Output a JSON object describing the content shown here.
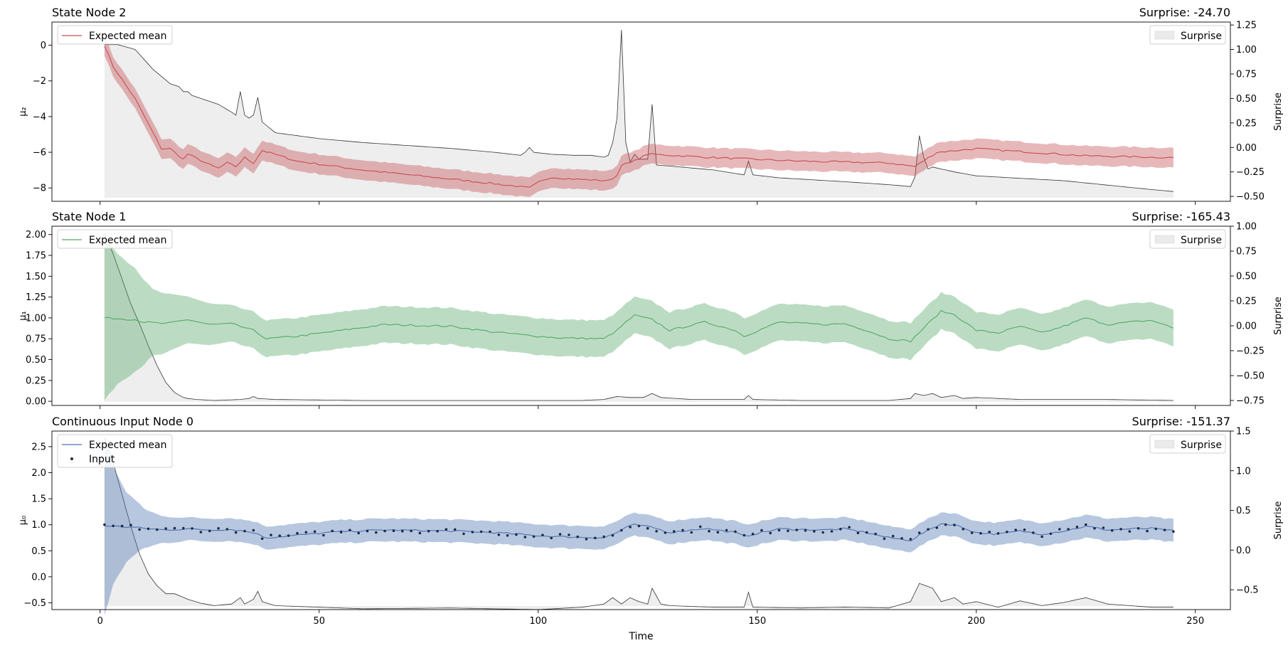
{
  "chart_data": [
    {
      "type": "line",
      "title": "State Node 2",
      "right_title": "Surprise: -24.70",
      "ylabel": "μ₂",
      "ylabel_right": "Surprise",
      "xlim": [
        -11,
        258
      ],
      "ylim": [
        -8.75,
        1.3
      ],
      "ylim_right": [
        -0.55,
        1.28
      ],
      "xticks": [
        0,
        50,
        100,
        150,
        200,
        250
      ],
      "yticks": [
        0,
        -2,
        -4,
        -6,
        -8
      ],
      "yticklabels": [
        "0",
        "−2",
        "−4",
        "−6",
        "−8"
      ],
      "yticks_right": [
        1.25,
        1.0,
        0.75,
        0.5,
        0.25,
        0.0,
        -0.25,
        -0.5
      ],
      "yticklabels_right": [
        "1.25",
        "1.00",
        "0.75",
        "0.50",
        "0.25",
        "0.00",
        "−0.25",
        "−0.50"
      ],
      "show_xticklabels": false,
      "color": "#c44e52",
      "band_halfwidth": 0.55,
      "mean_keypoints": [
        [
          1,
          0
        ],
        [
          3,
          -1.2
        ],
        [
          8,
          -3
        ],
        [
          14,
          -5.8
        ],
        [
          16,
          -5.8
        ],
        [
          19,
          -6.4
        ],
        [
          20,
          -6.1
        ],
        [
          25,
          -6.7
        ],
        [
          27,
          -6.9
        ],
        [
          29,
          -6.6
        ],
        [
          31,
          -6.8
        ],
        [
          33,
          -6.3
        ],
        [
          35,
          -6.6
        ],
        [
          37,
          -5.9
        ],
        [
          45,
          -6.5
        ],
        [
          60,
          -7.0
        ],
        [
          80,
          -7.5
        ],
        [
          95,
          -7.9
        ],
        [
          98,
          -8.0
        ],
        [
          100,
          -7.7
        ],
        [
          103,
          -7.4
        ],
        [
          108,
          -7.5
        ],
        [
          116,
          -7.6
        ],
        [
          118,
          -7.3
        ],
        [
          119,
          -6.7
        ],
        [
          121,
          -6.6
        ],
        [
          125,
          -6.1
        ],
        [
          140,
          -6.3
        ],
        [
          160,
          -6.5
        ],
        [
          180,
          -6.6
        ],
        [
          186,
          -6.8
        ],
        [
          191,
          -6.0
        ],
        [
          200,
          -5.8
        ],
        [
          225,
          -6.2
        ],
        [
          245,
          -6.3
        ]
      ],
      "surprise_keypoints": [
        [
          1,
          1.05
        ],
        [
          4,
          1.05
        ],
        [
          8,
          1.0
        ],
        [
          12,
          0.8
        ],
        [
          16,
          0.65
        ],
        [
          18,
          0.62
        ],
        [
          19,
          0.57
        ],
        [
          20,
          0.57
        ],
        [
          21,
          0.53
        ],
        [
          27,
          0.44
        ],
        [
          30,
          0.36
        ],
        [
          31,
          0.33
        ],
        [
          32,
          0.57
        ],
        [
          33,
          0.33
        ],
        [
          34,
          0.3
        ],
        [
          35,
          0.33
        ],
        [
          36,
          0.51
        ],
        [
          37,
          0.26
        ],
        [
          40,
          0.15
        ],
        [
          50,
          0.09
        ],
        [
          60,
          0.05
        ],
        [
          70,
          0.02
        ],
        [
          80,
          -0.01
        ],
        [
          90,
          -0.05
        ],
        [
          96,
          -0.08
        ],
        [
          97,
          -0.05
        ],
        [
          98,
          0.0
        ],
        [
          99,
          -0.05
        ],
        [
          103,
          -0.07
        ],
        [
          108,
          -0.08
        ],
        [
          112,
          -0.08
        ],
        [
          115,
          -0.1
        ],
        [
          116,
          -0.08
        ],
        [
          117,
          0.05
        ],
        [
          118,
          0.3
        ],
        [
          119,
          1.2
        ],
        [
          120,
          0.05
        ],
        [
          121,
          -0.15
        ],
        [
          122,
          -0.07
        ],
        [
          123,
          -0.12
        ],
        [
          124,
          -0.12
        ],
        [
          125,
          -0.12
        ],
        [
          126,
          0.44
        ],
        [
          127,
          -0.18
        ],
        [
          130,
          -0.19
        ],
        [
          140,
          -0.23
        ],
        [
          147,
          -0.28
        ],
        [
          148,
          -0.14
        ],
        [
          149,
          -0.28
        ],
        [
          155,
          -0.31
        ],
        [
          170,
          -0.35
        ],
        [
          180,
          -0.38
        ],
        [
          185,
          -0.4
        ],
        [
          186,
          -0.3
        ],
        [
          187,
          0.12
        ],
        [
          188,
          -0.1
        ],
        [
          189,
          -0.22
        ],
        [
          190,
          -0.2
        ],
        [
          195,
          -0.25
        ],
        [
          200,
          -0.29
        ],
        [
          220,
          -0.34
        ],
        [
          240,
          -0.43
        ],
        [
          245,
          -0.45
        ]
      ],
      "legend_left": [
        "Expected mean"
      ],
      "legend_right": "Surprise"
    },
    {
      "type": "line",
      "title": "State Node 1",
      "right_title": "Surprise: -165.43",
      "ylabel": "μ₁",
      "ylabel_right": "Surprise",
      "xlim": [
        -11,
        258
      ],
      "ylim": [
        -0.05,
        2.1
      ],
      "ylim_right": [
        -0.8,
        1.0
      ],
      "xticks": [
        0,
        50,
        100,
        150,
        200,
        250
      ],
      "yticks": [
        2.0,
        1.75,
        1.5,
        1.25,
        1.0,
        0.75,
        0.5,
        0.25,
        0.0
      ],
      "yticklabels": [
        "2.00",
        "1.75",
        "1.50",
        "1.25",
        "1.00",
        "0.75",
        "0.50",
        "0.25",
        "0.00"
      ],
      "yticks_right": [
        1.0,
        0.75,
        0.5,
        0.25,
        0.0,
        -0.25,
        -0.5,
        -0.75
      ],
      "yticklabels_right": [
        "1.00",
        "0.75",
        "0.50",
        "0.25",
        "0.00",
        "−0.25",
        "−0.50",
        "−0.75"
      ],
      "show_xticklabels": false,
      "color": "#55a868",
      "band_halfwidth": 0.22,
      "band_extra": [
        [
          1,
          0.77
        ],
        [
          4,
          0.56
        ],
        [
          8,
          0.4
        ],
        [
          12,
          0.18
        ],
        [
          16,
          0.12
        ],
        [
          20,
          0.06
        ],
        [
          30,
          0.0
        ]
      ],
      "mean_keypoints": [
        [
          1,
          1.0
        ],
        [
          8,
          0.98
        ],
        [
          10,
          0.95
        ],
        [
          15,
          0.93
        ],
        [
          20,
          0.98
        ],
        [
          25,
          0.92
        ],
        [
          30,
          0.93
        ],
        [
          35,
          0.85
        ],
        [
          38,
          0.75
        ],
        [
          45,
          0.78
        ],
        [
          55,
          0.85
        ],
        [
          65,
          0.92
        ],
        [
          80,
          0.9
        ],
        [
          90,
          0.83
        ],
        [
          100,
          0.78
        ],
        [
          105,
          0.76
        ],
        [
          115,
          0.75
        ],
        [
          118,
          0.85
        ],
        [
          120,
          0.95
        ],
        [
          122,
          1.03
        ],
        [
          126,
          0.98
        ],
        [
          130,
          0.85
        ],
        [
          138,
          0.95
        ],
        [
          145,
          0.85
        ],
        [
          147,
          0.78
        ],
        [
          155,
          0.95
        ],
        [
          165,
          0.92
        ],
        [
          170,
          0.93
        ],
        [
          175,
          0.85
        ],
        [
          180,
          0.75
        ],
        [
          185,
          0.72
        ],
        [
          188,
          0.88
        ],
        [
          192,
          1.08
        ],
        [
          195,
          1.04
        ],
        [
          200,
          0.85
        ],
        [
          205,
          0.82
        ],
        [
          210,
          0.9
        ],
        [
          215,
          0.82
        ],
        [
          220,
          0.9
        ],
        [
          225,
          1.0
        ],
        [
          230,
          0.92
        ],
        [
          235,
          0.95
        ],
        [
          240,
          0.97
        ],
        [
          245,
          0.88
        ]
      ],
      "surprise_keypoints": [
        [
          1,
          0.93
        ],
        [
          3,
          0.72
        ],
        [
          5,
          0.47
        ],
        [
          7,
          0.22
        ],
        [
          9,
          0.02
        ],
        [
          11,
          -0.2
        ],
        [
          13,
          -0.4
        ],
        [
          15,
          -0.57
        ],
        [
          17,
          -0.67
        ],
        [
          19,
          -0.72
        ],
        [
          20,
          -0.73
        ],
        [
          22,
          -0.74
        ],
        [
          26,
          -0.75
        ],
        [
          32,
          -0.74
        ],
        [
          34,
          -0.73
        ],
        [
          35,
          -0.71
        ],
        [
          36,
          -0.73
        ],
        [
          40,
          -0.74
        ],
        [
          60,
          -0.75
        ],
        [
          80,
          -0.75
        ],
        [
          100,
          -0.75
        ],
        [
          110,
          -0.75
        ],
        [
          115,
          -0.74
        ],
        [
          118,
          -0.71
        ],
        [
          121,
          -0.72
        ],
        [
          124,
          -0.72
        ],
        [
          126,
          -0.68
        ],
        [
          128,
          -0.72
        ],
        [
          135,
          -0.74
        ],
        [
          147,
          -0.74
        ],
        [
          148,
          -0.7
        ],
        [
          149,
          -0.74
        ],
        [
          160,
          -0.75
        ],
        [
          170,
          -0.75
        ],
        [
          180,
          -0.75
        ],
        [
          185,
          -0.73
        ],
        [
          186,
          -0.68
        ],
        [
          188,
          -0.7
        ],
        [
          190,
          -0.68
        ],
        [
          192,
          -0.72
        ],
        [
          195,
          -0.7
        ],
        [
          197,
          -0.73
        ],
        [
          200,
          -0.72
        ],
        [
          210,
          -0.74
        ],
        [
          220,
          -0.74
        ],
        [
          230,
          -0.74
        ],
        [
          245,
          -0.75
        ]
      ],
      "legend_left": [
        "Expected mean"
      ],
      "legend_right": "Surprise"
    },
    {
      "type": "line",
      "title": "Continuous Input Node 0",
      "right_title": "Surprise: -151.37",
      "ylabel": "μ₀",
      "ylabel_right": "Surprise",
      "xlabel": "Time",
      "xlim": [
        -11,
        258
      ],
      "ylim": [
        -0.63,
        2.8
      ],
      "ylim_right": [
        -0.75,
        1.5
      ],
      "xticks": [
        0,
        50,
        100,
        150,
        200,
        250
      ],
      "xticklabels": [
        "0",
        "50",
        "100",
        "150",
        "200",
        "250"
      ],
      "yticks": [
        2.5,
        2.0,
        1.5,
        1.0,
        0.5,
        0.0,
        -0.5
      ],
      "yticklabels": [
        "2.5",
        "2.0",
        "1.5",
        "1.0",
        "0.5",
        "0.0",
        "−0.5"
      ],
      "yticks_right": [
        1.5,
        1.0,
        0.5,
        0.0,
        -0.5
      ],
      "yticklabels_right": [
        "1.5",
        "1.0",
        "0.5",
        "0.0",
        "−0.5"
      ],
      "show_xticklabels": true,
      "color": "#4c72b0",
      "band_halfwidth": 0.22,
      "band_extra": [
        [
          1,
          1.5
        ],
        [
          3,
          0.9
        ],
        [
          6,
          0.45
        ],
        [
          10,
          0.16
        ],
        [
          14,
          0.04
        ],
        [
          20,
          0.0
        ]
      ],
      "mean_keypoints": [
        [
          1,
          0.98
        ],
        [
          8,
          0.95
        ],
        [
          10,
          0.93
        ],
        [
          15,
          0.9
        ],
        [
          20,
          0.92
        ],
        [
          25,
          0.9
        ],
        [
          30,
          0.91
        ],
        [
          35,
          0.85
        ],
        [
          38,
          0.75
        ],
        [
          45,
          0.8
        ],
        [
          55,
          0.87
        ],
        [
          65,
          0.9
        ],
        [
          80,
          0.88
        ],
        [
          90,
          0.85
        ],
        [
          100,
          0.79
        ],
        [
          105,
          0.77
        ],
        [
          115,
          0.75
        ],
        [
          118,
          0.85
        ],
        [
          120,
          0.95
        ],
        [
          122,
          1.0
        ],
        [
          126,
          0.95
        ],
        [
          130,
          0.85
        ],
        [
          138,
          0.93
        ],
        [
          145,
          0.85
        ],
        [
          147,
          0.78
        ],
        [
          155,
          0.92
        ],
        [
          165,
          0.9
        ],
        [
          170,
          0.92
        ],
        [
          175,
          0.85
        ],
        [
          180,
          0.75
        ],
        [
          185,
          0.7
        ],
        [
          188,
          0.85
        ],
        [
          192,
          1.02
        ],
        [
          195,
          1.0
        ],
        [
          200,
          0.85
        ],
        [
          205,
          0.82
        ],
        [
          210,
          0.88
        ],
        [
          215,
          0.82
        ],
        [
          220,
          0.88
        ],
        [
          225,
          0.97
        ],
        [
          230,
          0.9
        ],
        [
          235,
          0.92
        ],
        [
          240,
          0.93
        ],
        [
          245,
          0.88
        ]
      ],
      "input_noise_amplitude": 0.05,
      "surprise_keypoints": [
        [
          1,
          1.42
        ],
        [
          3,
          1.1
        ],
        [
          5,
          0.7
        ],
        [
          7,
          0.3
        ],
        [
          9,
          -0.05
        ],
        [
          11,
          -0.3
        ],
        [
          13,
          -0.45
        ],
        [
          15,
          -0.55
        ],
        [
          17,
          -0.55
        ],
        [
          20,
          -0.62
        ],
        [
          23,
          -0.67
        ],
        [
          26,
          -0.7
        ],
        [
          30,
          -0.68
        ],
        [
          32,
          -0.6
        ],
        [
          33,
          -0.68
        ],
        [
          35,
          -0.62
        ],
        [
          36,
          -0.52
        ],
        [
          37,
          -0.65
        ],
        [
          40,
          -0.7
        ],
        [
          50,
          -0.72
        ],
        [
          60,
          -0.74
        ],
        [
          80,
          -0.73
        ],
        [
          100,
          -0.75
        ],
        [
          110,
          -0.72
        ],
        [
          115,
          -0.68
        ],
        [
          117,
          -0.6
        ],
        [
          119,
          -0.68
        ],
        [
          121,
          -0.6
        ],
        [
          123,
          -0.65
        ],
        [
          125,
          -0.68
        ],
        [
          126,
          -0.48
        ],
        [
          128,
          -0.68
        ],
        [
          130,
          -0.7
        ],
        [
          140,
          -0.72
        ],
        [
          147,
          -0.72
        ],
        [
          148,
          -0.53
        ],
        [
          149,
          -0.72
        ],
        [
          160,
          -0.73
        ],
        [
          170,
          -0.72
        ],
        [
          180,
          -0.73
        ],
        [
          185,
          -0.65
        ],
        [
          187,
          -0.42
        ],
        [
          190,
          -0.48
        ],
        [
          192,
          -0.65
        ],
        [
          195,
          -0.6
        ],
        [
          197,
          -0.68
        ],
        [
          200,
          -0.65
        ],
        [
          205,
          -0.72
        ],
        [
          210,
          -0.64
        ],
        [
          215,
          -0.7
        ],
        [
          220,
          -0.66
        ],
        [
          225,
          -0.6
        ],
        [
          230,
          -0.68
        ],
        [
          240,
          -0.72
        ],
        [
          245,
          -0.72
        ]
      ],
      "legend_left": [
        "Expected mean",
        "Input"
      ],
      "legend_right": "Surprise"
    }
  ]
}
